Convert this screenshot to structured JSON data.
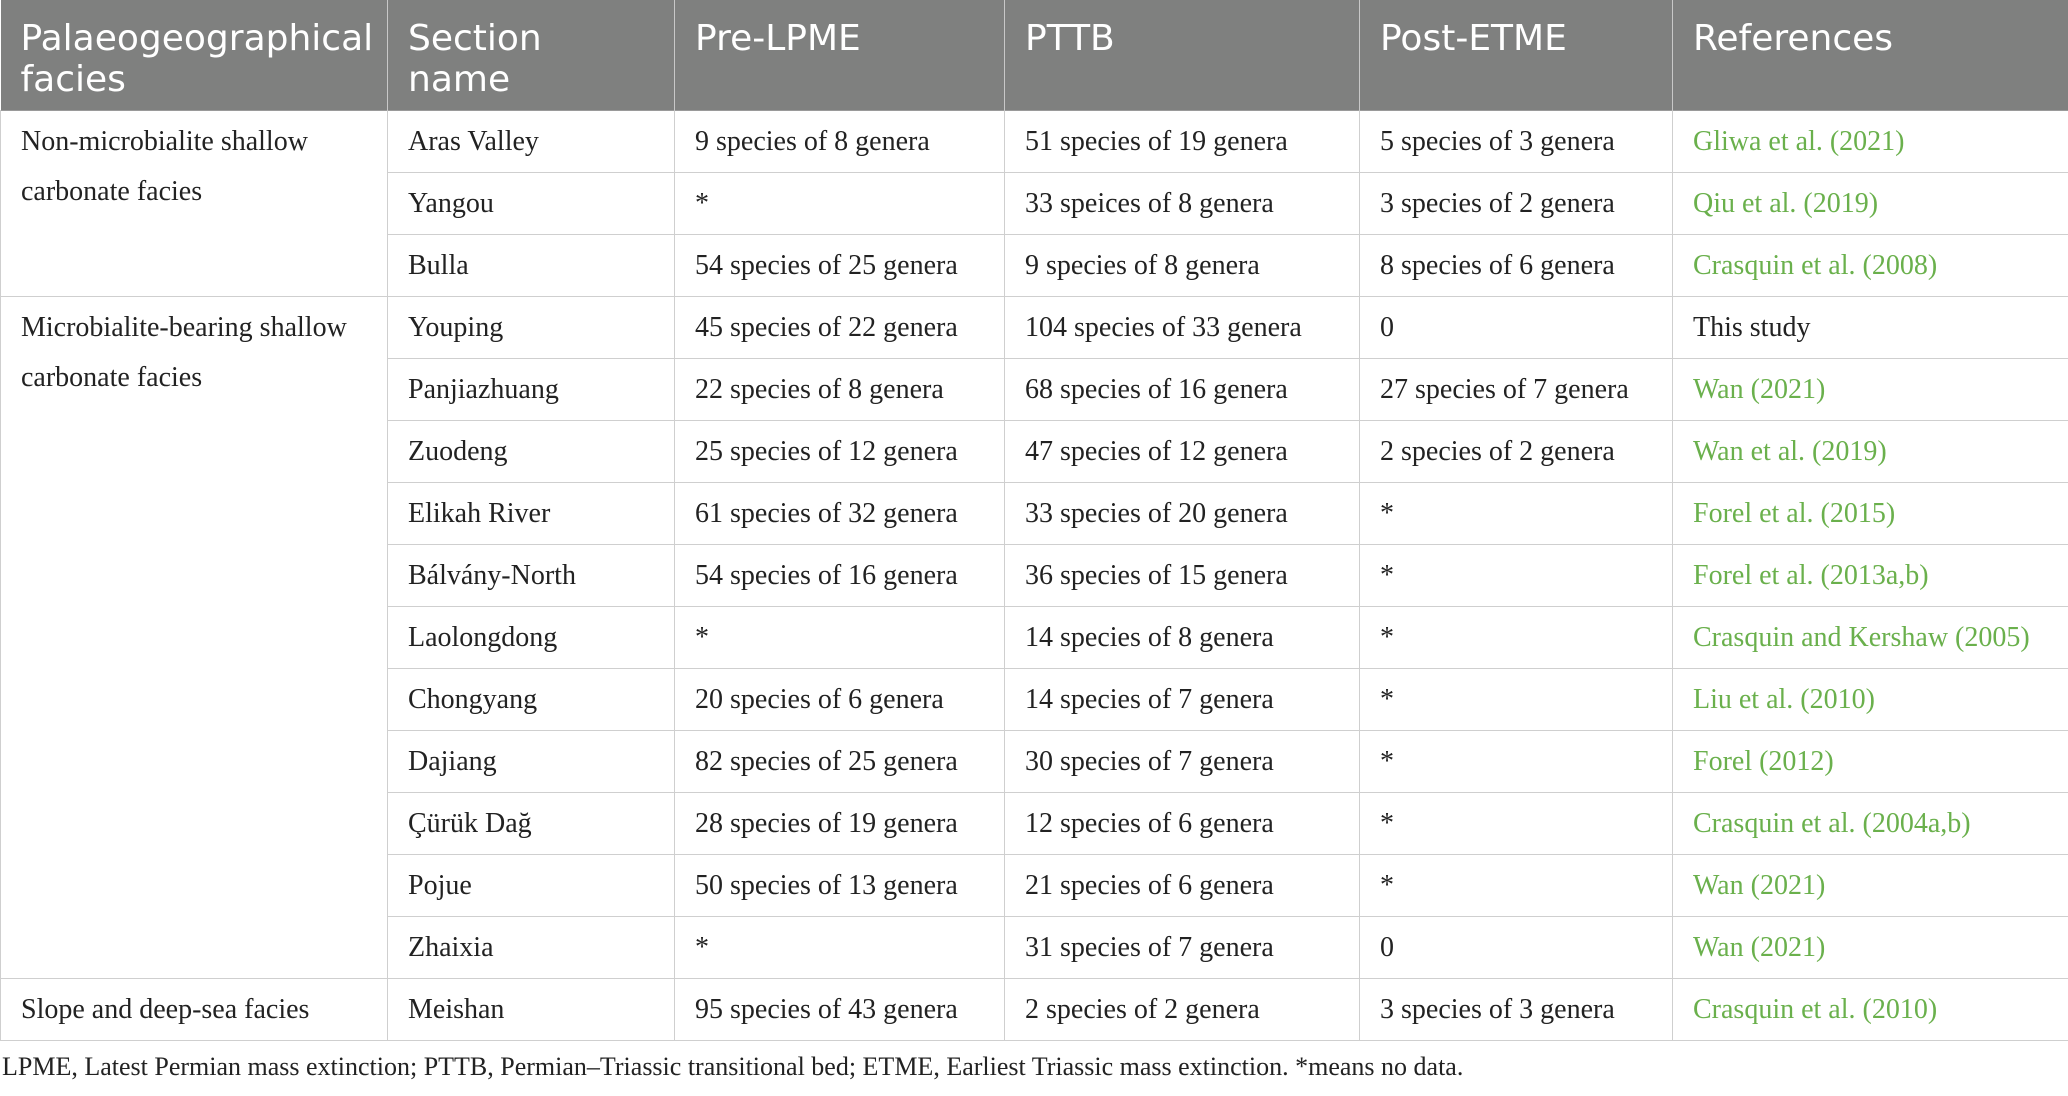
{
  "headers": [
    "Palaeogeographical facies",
    "Section name",
    "Pre-LPME",
    "PTTB",
    "Post-ETME",
    "References"
  ],
  "groups": [
    {
      "facies": "Non-microbialite shallow carbonate facies",
      "rows": [
        {
          "section": "Aras Valley",
          "pre": "9 species of 8 genera",
          "pttb": "51 species of 19 genera",
          "post": "5 species of 3 genera",
          "ref": "Gliwa et al. (2021)",
          "ref_link": true
        },
        {
          "section": "Yangou",
          "pre": "*",
          "pttb": "33 speices of 8 genera",
          "post": "3 species of 2 genera",
          "ref": "Qiu et al. (2019)",
          "ref_link": true
        },
        {
          "section": "Bulla",
          "pre": "54 species of 25 genera",
          "pttb": "9 species of 8 genera",
          "post": "8 species of 6 genera",
          "ref": "Crasquin et al. (2008)",
          "ref_link": true
        }
      ]
    },
    {
      "facies": "Microbialite-bearing shallow carbonate facies",
      "rows": [
        {
          "section": "Youping",
          "pre": "45 species of 22 genera",
          "pttb": "104 species of 33 genera",
          "post": "0",
          "ref": "This study",
          "ref_link": false
        },
        {
          "section": "Panjiazhuang",
          "pre": "22 species of 8 genera",
          "pttb": "68 species of 16 genera",
          "post": "27 species of 7 genera",
          "ref": "Wan (2021)",
          "ref_link": true
        },
        {
          "section": "Zuodeng",
          "pre": "25 species of 12 genera",
          "pttb": "47 species of 12 genera",
          "post": "2 species of 2 genera",
          "ref": "Wan et al. (2019)",
          "ref_link": true
        },
        {
          "section": "Elikah River",
          "pre": "61 species of 32 genera",
          "pttb": "33 species of 20 genera",
          "post": "*",
          "ref": "Forel et al. (2015)",
          "ref_link": true
        },
        {
          "section": "Bálvány-North",
          "pre": "54 species of 16 genera",
          "pttb": "36 species of 15 genera",
          "post": "*",
          "ref": "Forel et al. (2013a,b)",
          "ref_link": true
        },
        {
          "section": "Laolongdong",
          "pre": "*",
          "pttb": "14 species of 8 genera",
          "post": "*",
          "ref": "Crasquin and Kershaw (2005)",
          "ref_link": true
        },
        {
          "section": "Chongyang",
          "pre": "20 species of 6 genera",
          "pttb": "14 species of 7 genera",
          "post": "*",
          "ref": "Liu et al. (2010)",
          "ref_link": true
        },
        {
          "section": "Dajiang",
          "pre": "82 species of 25 genera",
          "pttb": "30 species of 7 genera",
          "post": "*",
          "ref": "Forel (2012)",
          "ref_link": true
        },
        {
          "section": "Çürük Dağ",
          "pre": "28 species of 19 genera",
          "pttb": "12 species of 6 genera",
          "post": "*",
          "ref": "Crasquin et al. (2004a,b)",
          "ref_link": true
        },
        {
          "section": "Pojue",
          "pre": "50 species of 13 genera",
          "pttb": "21 species of 6 genera",
          "post": "*",
          "ref": "Wan (2021)",
          "ref_link": true
        },
        {
          "section": "Zhaixia",
          "pre": "*",
          "pttb": "31 species of 7 genera",
          "post": "0",
          "ref": "Wan (2021)",
          "ref_link": true
        }
      ]
    },
    {
      "facies": "Slope and deep-sea facies",
      "rows": [
        {
          "section": "Meishan",
          "pre": "95 species of 43 genera",
          "pttb": "2 species of 2 genera",
          "post": "3 species of 3 genera",
          "ref": "Crasquin et al. (2010)",
          "ref_link": true
        }
      ]
    }
  ],
  "footnote": "LPME, Latest Permian mass extinction; PTTB, Permian–Triassic transitional bed; ETME, Earliest Triassic mass extinction. *means no data.",
  "colors": {
    "header_bg": "#7f807f",
    "link": "#6ab04c"
  }
}
